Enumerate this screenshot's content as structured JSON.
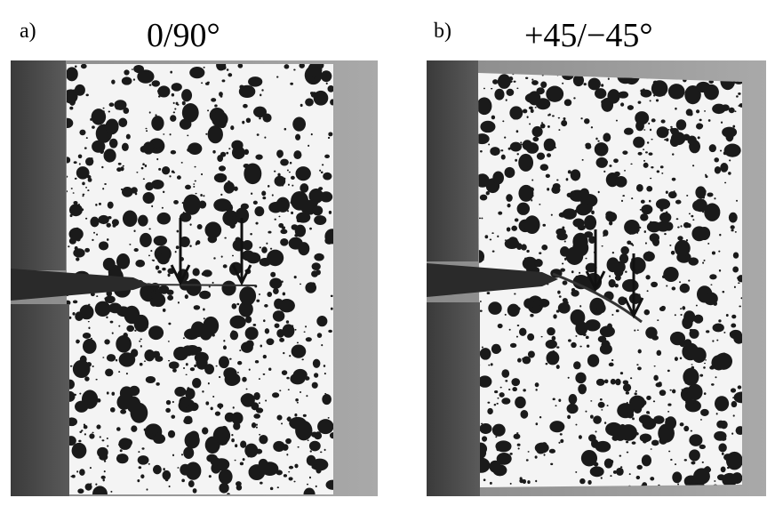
{
  "panels": [
    {
      "label": "a)",
      "title": "0/90°"
    },
    {
      "label": "b)",
      "title": "+45/−45°"
    }
  ]
}
